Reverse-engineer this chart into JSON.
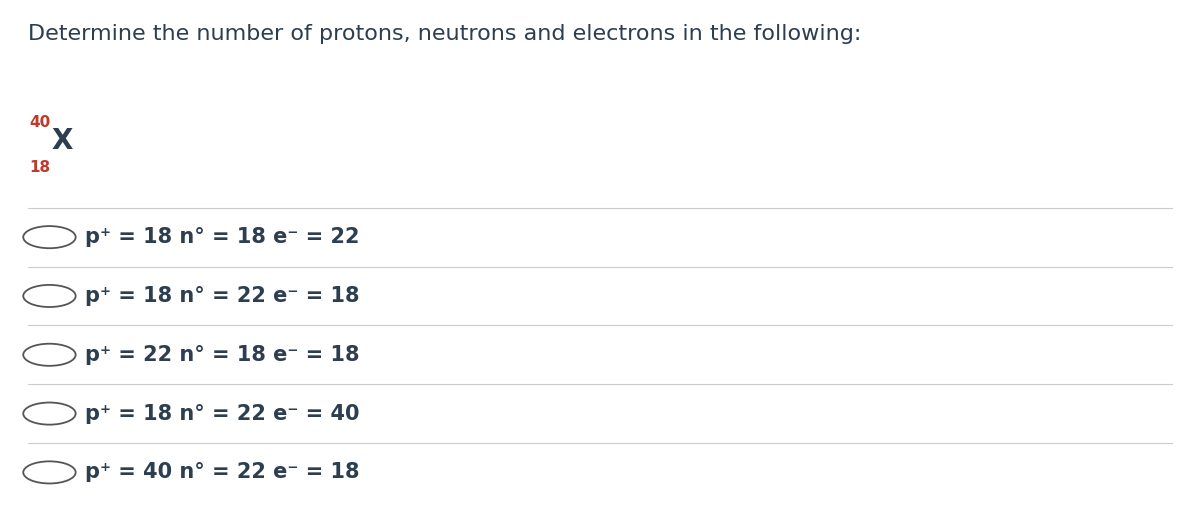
{
  "title": "Determine the number of protons, neutrons and electrons in the following:",
  "element_symbol": "X",
  "mass_number": "40",
  "atomic_number": "18",
  "mass_color": "#c0392b",
  "atomic_color": "#c0392b",
  "symbol_color": "#2c3e50",
  "title_color": "#2c3e50",
  "bg_color": "#ffffff",
  "options": [
    "p⁺ = 18 n° = 18 e⁻ = 22",
    "p⁺ = 18 n° = 22 e⁻ = 18",
    "p⁺ = 22 n° = 18 e⁻ = 18",
    "p⁺ = 18 n° = 22 e⁻ = 40",
    "p⁺ = 40 n° = 22 e⁻ = 18"
  ],
  "option_color": "#2c3e50",
  "line_color": "#cccccc",
  "circle_color": "#555555",
  "title_fontsize": 16,
  "option_fontsize": 15
}
